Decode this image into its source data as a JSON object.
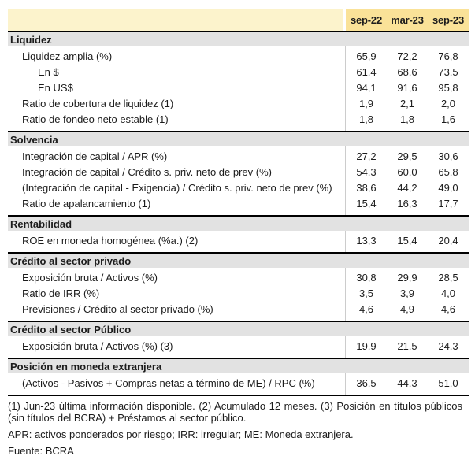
{
  "colors": {
    "pale_yellow": "#fcf3cc",
    "gold_yellow": "#fae298",
    "section_bar_gray": "#e2e2e2",
    "rule_black": "#000000",
    "divider_gray": "#cccccc"
  },
  "table": {
    "columns": [
      "sep-22",
      "mar-23",
      "sep-23"
    ],
    "sections": [
      {
        "title": "Liquidez",
        "rows": [
          {
            "label": "Liquidez amplia (%)",
            "indent": 1,
            "values": [
              "65,9",
              "72,2",
              "76,8"
            ]
          },
          {
            "label": "En $",
            "indent": 2,
            "values": [
              "61,4",
              "68,6",
              "73,5"
            ]
          },
          {
            "label": "En US$",
            "indent": 2,
            "values": [
              "94,1",
              "91,6",
              "95,8"
            ]
          },
          {
            "label": "Ratio de cobertura de liquidez (1)",
            "indent": 1,
            "values": [
              "1,9",
              "2,1",
              "2,0"
            ]
          },
          {
            "label": "Ratio de fondeo neto estable (1)",
            "indent": 1,
            "values": [
              "1,8",
              "1,8",
              "1,6"
            ]
          }
        ]
      },
      {
        "title": "Solvencia",
        "rows": [
          {
            "label": "Integración de capital / APR (%)",
            "indent": 1,
            "values": [
              "27,2",
              "29,5",
              "30,6"
            ]
          },
          {
            "label": "Integración de capital / Crédito s. priv. neto de prev (%)",
            "indent": 1,
            "values": [
              "54,3",
              "60,0",
              "65,8"
            ]
          },
          {
            "label": "(Integración de capital - Exigencia) / Crédito s. priv. neto de prev (%)",
            "indent": 1,
            "values": [
              "38,6",
              "44,2",
              "49,0"
            ]
          },
          {
            "label": "Ratio de apalancamiento (1)",
            "indent": 1,
            "values": [
              "15,4",
              "16,3",
              "17,7"
            ]
          }
        ]
      },
      {
        "title": "Rentabilidad",
        "rows": [
          {
            "label": "ROE en moneda homogénea (%a.) (2)",
            "indent": 1,
            "values": [
              "13,3",
              "15,4",
              "20,4"
            ]
          }
        ]
      },
      {
        "title": "Crédito al sector privado",
        "rows": [
          {
            "label": "Exposición bruta / Activos (%)",
            "indent": 1,
            "values": [
              "30,8",
              "29,9",
              "28,5"
            ]
          },
          {
            "label": "Ratio de IRR (%)",
            "indent": 1,
            "values": [
              "3,5",
              "3,9",
              "4,0"
            ]
          },
          {
            "label": "Previsiones / Crédito al sector privado (%)",
            "indent": 1,
            "values": [
              "4,6",
              "4,9",
              "4,6"
            ]
          }
        ]
      },
      {
        "title": "Crédito al sector Público",
        "rows": [
          {
            "label": "Exposición bruta / Activos (%) (3)",
            "indent": 1,
            "values": [
              "19,9",
              "21,5",
              "24,3"
            ]
          }
        ]
      },
      {
        "title": "Posición en moneda extranjera",
        "rows": [
          {
            "label": "(Activos - Pasivos + Compras netas a término de ME) / RPC (%)",
            "indent": 1,
            "values": [
              "36,5",
              "44,3",
              "51,0"
            ]
          }
        ]
      }
    ]
  },
  "footnotes": {
    "numbered": "(1) Jun-23 última información disponible. (2) Acumulado 12 meses. (3) Posición en títulos públicos (sin títulos del BCRA) + Préstamos al sector público.",
    "abbreviations": "APR: activos ponderados por riesgo; IRR: irregular; ME: Moneda extranjera.",
    "source": "Fuente: BCRA"
  }
}
